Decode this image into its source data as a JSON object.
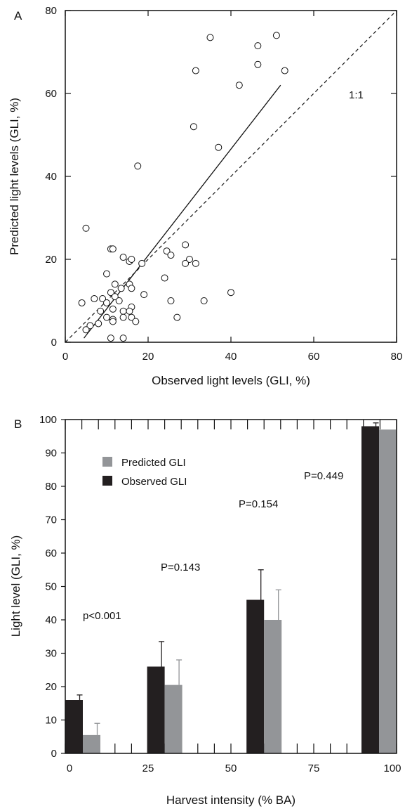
{
  "chart_data": [
    {
      "type": "scatter",
      "panel_label": "A",
      "xlabel": "Observed light levels (GLI, %)",
      "ylabel": "Predicted light levels (GLI, %)",
      "xlim": [
        0,
        80
      ],
      "ylim": [
        0,
        80
      ],
      "x_ticks": [
        0,
        20,
        40,
        60,
        80
      ],
      "y_ticks": [
        0,
        20,
        40,
        60,
        80
      ],
      "x_tick_labels": [
        "0",
        "20",
        "40",
        "60",
        "80"
      ],
      "y_tick_labels": [
        "0",
        "20",
        "40",
        "60",
        "80"
      ],
      "grid": false,
      "identity_label": "1:1",
      "identity_line": [
        [
          0,
          0
        ],
        [
          80,
          80
        ]
      ],
      "regression_line": [
        [
          4.5,
          1
        ],
        [
          52,
          62
        ]
      ],
      "points": [
        [
          35,
          73.5
        ],
        [
          51,
          74
        ],
        [
          46.5,
          71.5
        ],
        [
          46.5,
          67
        ],
        [
          31.5,
          65.5
        ],
        [
          53,
          65.5
        ],
        [
          42,
          62
        ],
        [
          31,
          52
        ],
        [
          37,
          47
        ],
        [
          17.5,
          42.5
        ],
        [
          5,
          27.5
        ],
        [
          11,
          22.5
        ],
        [
          11.5,
          22.5
        ],
        [
          24.5,
          22
        ],
        [
          29,
          23.5
        ],
        [
          25.5,
          21
        ],
        [
          14,
          20.5
        ],
        [
          15.5,
          19.5
        ],
        [
          16,
          20
        ],
        [
          30,
          20
        ],
        [
          29,
          19
        ],
        [
          31.5,
          19
        ],
        [
          18.5,
          19
        ],
        [
          10,
          16.5
        ],
        [
          24,
          15.5
        ],
        [
          15.5,
          14
        ],
        [
          12,
          14
        ],
        [
          16,
          13
        ],
        [
          13.5,
          13
        ],
        [
          11,
          12
        ],
        [
          19,
          11.5
        ],
        [
          40,
          12
        ],
        [
          12,
          11
        ],
        [
          7,
          10.5
        ],
        [
          9,
          10.5
        ],
        [
          10,
          9.5
        ],
        [
          13,
          10
        ],
        [
          25.5,
          10
        ],
        [
          33.5,
          10
        ],
        [
          4,
          9.5
        ],
        [
          11.5,
          8
        ],
        [
          8.5,
          7.5
        ],
        [
          14,
          7.5
        ],
        [
          16,
          8.5
        ],
        [
          15.5,
          7.5
        ],
        [
          10,
          6
        ],
        [
          11.5,
          5.5
        ],
        [
          14,
          6
        ],
        [
          16,
          6
        ],
        [
          27,
          6
        ],
        [
          11.5,
          5
        ],
        [
          17,
          5
        ],
        [
          8,
          4.5
        ],
        [
          6,
          4
        ],
        [
          5,
          3
        ],
        [
          11,
          1
        ],
        [
          14,
          1
        ]
      ]
    },
    {
      "type": "bar",
      "panel_label": "B",
      "xlabel": "Harvest intensity (% BA)",
      "ylabel": "Light level (GLI, %)",
      "xlim": [
        0,
        100
      ],
      "ylim": [
        0,
        100
      ],
      "x_ticks": [
        0,
        25,
        50,
        75,
        100
      ],
      "y_ticks": [
        0,
        10,
        20,
        30,
        40,
        50,
        60,
        70,
        80,
        90,
        100
      ],
      "x_tick_labels": [
        "0",
        "25",
        "50",
        "75",
        "100"
      ],
      "y_tick_labels": [
        "0",
        "10",
        "20",
        "30",
        "40",
        "50",
        "60",
        "70",
        "80",
        "90",
        "100"
      ],
      "legend_position": "top-left",
      "categories": [
        "0",
        "30",
        "60",
        "100"
      ],
      "category_x": [
        0,
        30,
        60,
        100
      ],
      "series": [
        {
          "name": "Observed GLI",
          "color": "#231f20",
          "values": [
            16,
            26,
            46,
            98
          ],
          "errors": [
            1.5,
            7.5,
            9,
            1
          ]
        },
        {
          "name": "Predicted GLI",
          "color": "#939598",
          "values": [
            5.5,
            20.5,
            40,
            97
          ],
          "errors": [
            3.5,
            7.5,
            9,
            0
          ]
        }
      ],
      "legend_order": [
        "Predicted GLI",
        "Observed GLI"
      ],
      "annotations": [
        "p<0.001",
        "P=0.143",
        "P=0.154",
        "P=0.449"
      ]
    }
  ]
}
